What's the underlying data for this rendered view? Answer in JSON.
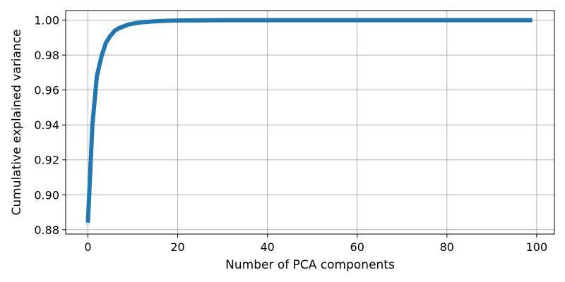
{
  "chart_data": {
    "type": "line",
    "title": "",
    "xlabel": "Number of PCA components",
    "ylabel": "Cumulative explained variance",
    "xlim": [
      -4.95,
      103.95
    ],
    "ylim": [
      0.8775,
      1.0055
    ],
    "xticks": [
      0,
      20,
      40,
      60,
      80,
      100
    ],
    "yticks": [
      0.88,
      0.9,
      0.92,
      0.94,
      0.96,
      0.98,
      1.0
    ],
    "xtick_labels": [
      "0",
      "20",
      "40",
      "60",
      "80",
      "100"
    ],
    "ytick_labels": [
      "0.88",
      "0.90",
      "0.92",
      "0.94",
      "0.96",
      "0.98",
      "1.00"
    ],
    "grid": true,
    "legend": "none",
    "series": [
      {
        "color": "#1f77b4",
        "x": [
          0,
          1,
          2,
          3,
          4,
          5,
          6,
          7,
          8,
          9,
          10,
          12,
          14,
          16,
          18,
          20,
          25,
          30,
          40,
          50,
          60,
          70,
          80,
          90,
          99
        ],
        "y": [
          0.884,
          0.94,
          0.968,
          0.979,
          0.987,
          0.991,
          0.994,
          0.9955,
          0.9965,
          0.9975,
          0.998,
          0.9988,
          0.9992,
          0.9995,
          0.9997,
          0.9998,
          0.9999,
          1.0,
          1.0,
          1.0,
          1.0,
          1.0,
          1.0,
          1.0,
          1.0
        ]
      }
    ]
  }
}
